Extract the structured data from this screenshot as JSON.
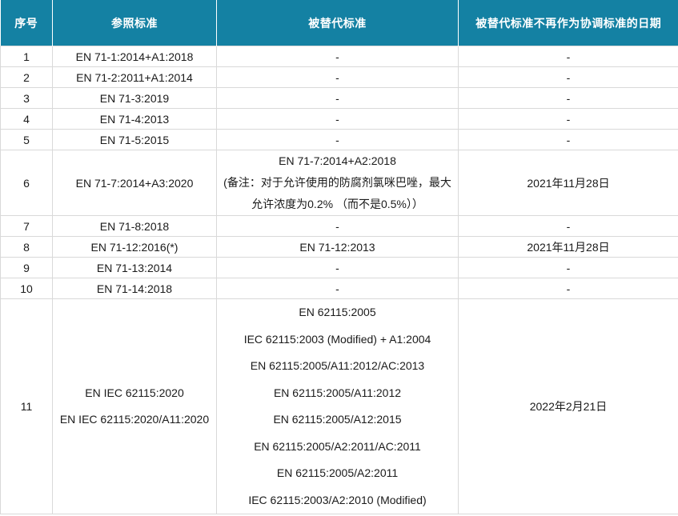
{
  "table": {
    "headers": [
      "序号",
      "参照标准",
      "被替代标准",
      "被替代标准不再作为协调标准的日期"
    ],
    "rows": [
      {
        "no": "1",
        "ref": [
          "EN 71-1:2014+A1:2018"
        ],
        "superseded": [
          "-"
        ],
        "date": "-"
      },
      {
        "no": "2",
        "ref": [
          "EN 71-2:2011+A1:2014"
        ],
        "superseded": [
          "-"
        ],
        "date": "-"
      },
      {
        "no": "3",
        "ref": [
          "EN 71-3:2019"
        ],
        "superseded": [
          "-"
        ],
        "date": "-"
      },
      {
        "no": "4",
        "ref": [
          "EN 71-4:2013"
        ],
        "superseded": [
          "-"
        ],
        "date": "-"
      },
      {
        "no": "5",
        "ref": [
          "EN 71-5:2015"
        ],
        "superseded": [
          "-"
        ],
        "date": "-"
      },
      {
        "no": "6",
        "ref": [
          "EN 71-7:2014+A3:2020"
        ],
        "superseded": [
          "EN 71-7:2014+A2:2018",
          "(备注：对于允许使用的防腐剂氯咪巴唑，最大允许浓度为0.2% （而不是0.5%））"
        ],
        "date": "2021年11月28日"
      },
      {
        "no": "7",
        "ref": [
          "EN 71-8:2018"
        ],
        "superseded": [
          "-"
        ],
        "date": "-"
      },
      {
        "no": "8",
        "ref": [
          "EN 71-12:2016(*)"
        ],
        "superseded": [
          "EN 71-12:2013"
        ],
        "date": "2021年11月28日"
      },
      {
        "no": "9",
        "ref": [
          "EN 71-13:2014"
        ],
        "superseded": [
          "-"
        ],
        "date": "-"
      },
      {
        "no": "10",
        "ref": [
          "EN 71-14:2018"
        ],
        "superseded": [
          "-"
        ],
        "date": "-"
      },
      {
        "no": "11",
        "ref": [
          "EN IEC 62115:2020",
          "EN IEC 62115:2020/A11:2020"
        ],
        "superseded": [
          "EN 62115:2005",
          "IEC 62115:2003 (Modified) + A1:2004",
          "EN 62115:2005/A11:2012/AC:2013",
          "EN 62115:2005/A11:2012",
          "EN 62115:2005/A12:2015",
          "EN 62115:2005/A2:2011/AC:2011",
          "EN 62115:2005/A2:2011",
          "IEC 62115:2003/A2:2010 (Modified)"
        ],
        "date": "2022年2月21日"
      }
    ],
    "colors": {
      "header_bg": "#1481A3",
      "header_text": "#ffffff",
      "body_text": "#1a1a1a",
      "grid_line": "#d9d9d9"
    }
  }
}
